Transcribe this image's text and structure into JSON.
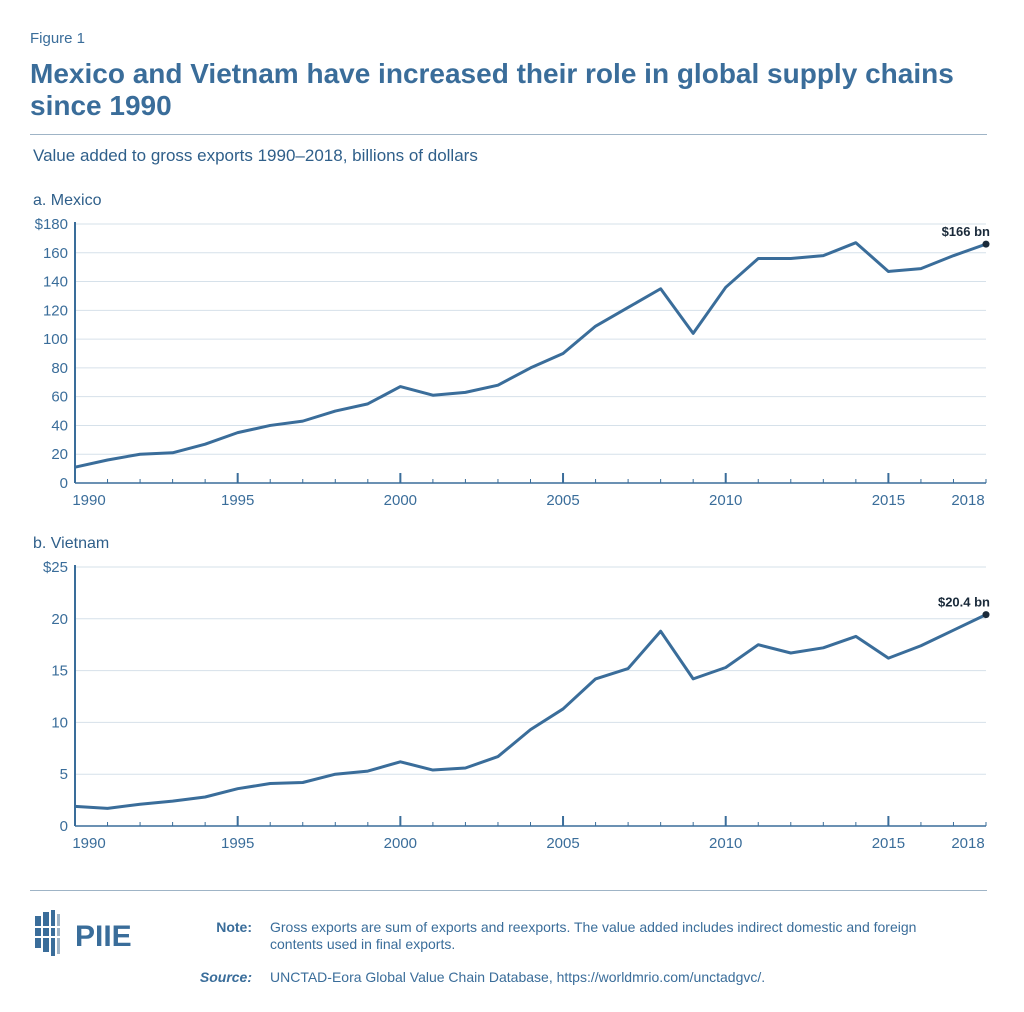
{
  "figure_label": "Figure 1",
  "title": "Mexico and Vietnam have increased their role in global supply chains since 1990",
  "subtitle": "Value added to gross exports 1990–2018, billions of dollars",
  "colors": {
    "line": "#3a6d9a",
    "grid": "#d6e1ea",
    "axis": "#3a6d9a",
    "endpoint": "#1a2a3a"
  },
  "chart_data": [
    {
      "type": "line",
      "panel_title": "a. Mexico",
      "ylim": [
        0,
        180
      ],
      "yticks": [
        "0",
        "20",
        "40",
        "60",
        "80",
        "100",
        "120",
        "140",
        "160",
        "$180"
      ],
      "ytick_values": [
        0,
        20,
        40,
        60,
        80,
        100,
        120,
        140,
        160,
        180
      ],
      "xtick_labels": [
        "1990",
        "1995",
        "2000",
        "2005",
        "2010",
        "2015",
        "2018"
      ],
      "xtick_values": [
        1990,
        1995,
        2000,
        2005,
        2010,
        2015,
        2018
      ],
      "grid": true,
      "x": [
        1990,
        1991,
        1992,
        1993,
        1994,
        1995,
        1996,
        1997,
        1998,
        1999,
        2000,
        2001,
        2002,
        2003,
        2004,
        2005,
        2006,
        2007,
        2008,
        2009,
        2010,
        2011,
        2012,
        2013,
        2014,
        2015,
        2016,
        2017,
        2018
      ],
      "values": [
        11,
        16,
        20,
        21,
        27,
        35,
        40,
        43,
        50,
        55,
        67,
        61,
        63,
        68,
        80,
        90,
        109,
        122,
        135,
        104,
        136,
        156,
        156,
        158,
        167,
        147,
        149,
        158,
        166
      ],
      "annotation": "$166 bn"
    },
    {
      "type": "line",
      "panel_title": "b. Vietnam",
      "ylim": [
        0,
        25
      ],
      "yticks": [
        "0",
        "5",
        "10",
        "15",
        "20",
        "$25"
      ],
      "ytick_values": [
        0,
        5,
        10,
        15,
        20,
        25
      ],
      "xtick_labels": [
        "1990",
        "1995",
        "2000",
        "2005",
        "2010",
        "2015",
        "2018"
      ],
      "xtick_values": [
        1990,
        1995,
        2000,
        2005,
        2010,
        2015,
        2018
      ],
      "grid": true,
      "x": [
        1990,
        1991,
        1992,
        1993,
        1994,
        1995,
        1996,
        1997,
        1998,
        1999,
        2000,
        2001,
        2002,
        2003,
        2004,
        2005,
        2006,
        2007,
        2008,
        2009,
        2010,
        2011,
        2012,
        2013,
        2014,
        2015,
        2016,
        2017,
        2018
      ],
      "values": [
        1.9,
        1.7,
        2.1,
        2.4,
        2.8,
        3.6,
        4.1,
        4.2,
        5.0,
        5.3,
        6.2,
        5.4,
        5.6,
        6.7,
        9.3,
        11.3,
        14.2,
        15.2,
        18.8,
        14.2,
        15.3,
        17.5,
        16.7,
        17.2,
        18.3,
        16.2,
        17.4,
        18.9,
        20.4
      ],
      "annotation": "$20.4 bn"
    }
  ],
  "footer": {
    "logo_text": "PIIE",
    "note_label": "Note:",
    "note_text": "Gross exports are sum of exports and reexports. The value added includes indirect domestic and foreign contents used in final exports.",
    "source_label": "Source:",
    "source_text": "UNCTAD-Eora Global Value Chain Database, https://worldmrio.com/unctadgvc/."
  }
}
